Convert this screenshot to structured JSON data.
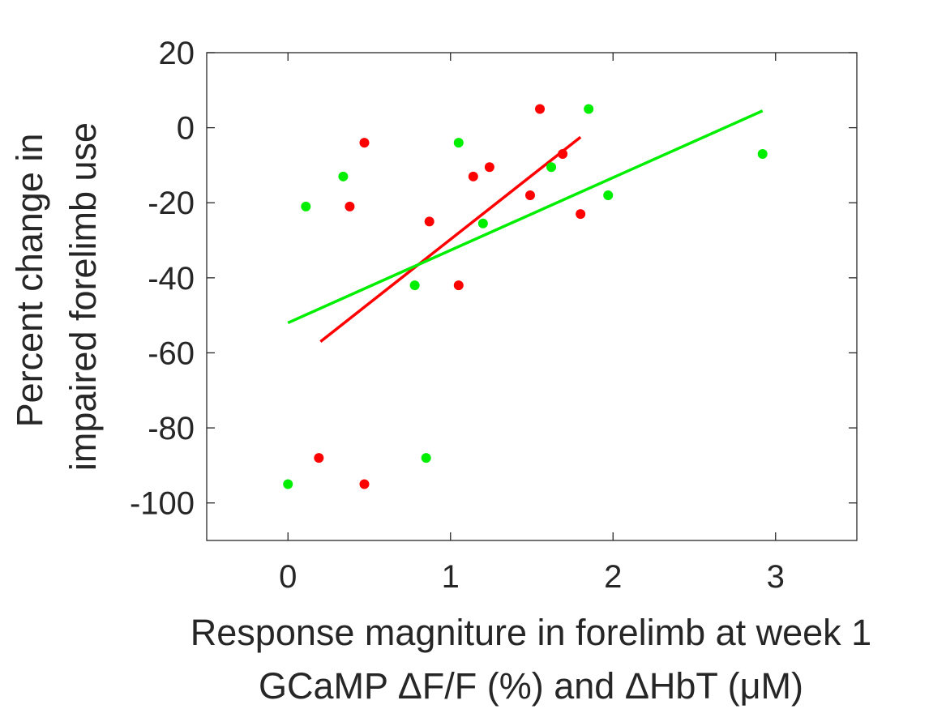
{
  "chart_data": {
    "type": "scatter",
    "xlabel": [
      "Response magniture in forelimb at week 1",
      "GCaMP ΔF/F (%) and ΔHbT (μM)"
    ],
    "ylabel": [
      "Percent change in",
      "impaired forelimb use"
    ],
    "xlim": [
      -0.5,
      3.5
    ],
    "ylim": [
      -110,
      20
    ],
    "xticks": [
      "0",
      "1",
      "2",
      "3"
    ],
    "yticks": [
      "20",
      "0",
      "-20",
      "-40",
      "-60",
      "-80",
      "-100"
    ],
    "grid": false,
    "legend": "none",
    "series": [
      {
        "color": "#ff0000",
        "points": [
          {
            "x": 0.19,
            "y": -88
          },
          {
            "x": 0.38,
            "y": -21
          },
          {
            "x": 0.47,
            "y": -4
          },
          {
            "x": 0.47,
            "y": -95
          },
          {
            "x": 0.87,
            "y": -25
          },
          {
            "x": 1.05,
            "y": -42
          },
          {
            "x": 1.14,
            "y": -13
          },
          {
            "x": 1.24,
            "y": -10.5
          },
          {
            "x": 1.49,
            "y": -18
          },
          {
            "x": 1.55,
            "y": 5
          },
          {
            "x": 1.69,
            "y": -7
          },
          {
            "x": 1.8,
            "y": -23
          }
        ],
        "fit": {
          "x": [
            0.2,
            1.8
          ],
          "y": [
            -57,
            -2.5
          ]
        }
      },
      {
        "color": "#00ee00",
        "points": [
          {
            "x": 0.0,
            "y": -95
          },
          {
            "x": 0.11,
            "y": -21
          },
          {
            "x": 0.34,
            "y": -13
          },
          {
            "x": 0.78,
            "y": -42
          },
          {
            "x": 0.85,
            "y": -88
          },
          {
            "x": 1.05,
            "y": -4
          },
          {
            "x": 1.2,
            "y": -25.5
          },
          {
            "x": 1.62,
            "y": -10.5
          },
          {
            "x": 1.85,
            "y": 5
          },
          {
            "x": 1.97,
            "y": -18
          },
          {
            "x": 2.92,
            "y": -7
          }
        ],
        "fit": {
          "x": [
            0.0,
            2.92
          ],
          "y": [
            -52,
            4.5
          ]
        }
      }
    ]
  }
}
